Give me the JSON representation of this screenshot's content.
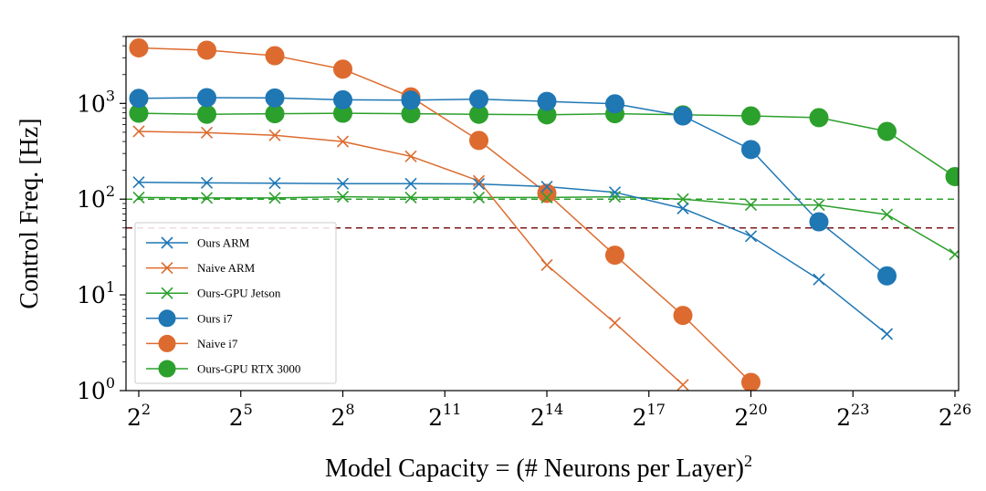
{
  "chart_data": {
    "type": "line",
    "title": "",
    "xlabel": "Model Capacity = (# Neurons per Layer)",
    "xlabel_sup": "2",
    "ylabel": "Control Freq. [Hz]",
    "x_scale": "log2",
    "y_scale": "log10",
    "xlim_exp": [
      2,
      26
    ],
    "ylim": [
      1,
      5000
    ],
    "x_ticks": [
      {
        "base": "2",
        "exp": "2",
        "value": 2
      },
      {
        "base": "2",
        "exp": "5",
        "value": 5
      },
      {
        "base": "2",
        "exp": "8",
        "value": 8
      },
      {
        "base": "2",
        "exp": "11",
        "value": 11
      },
      {
        "base": "2",
        "exp": "14",
        "value": 14
      },
      {
        "base": "2",
        "exp": "17",
        "value": 17
      },
      {
        "base": "2",
        "exp": "20",
        "value": 20
      },
      {
        "base": "2",
        "exp": "23",
        "value": 23
      },
      {
        "base": "2",
        "exp": "26",
        "value": 26
      }
    ],
    "y_ticks": [
      {
        "base": "10",
        "exp": "0",
        "value": 1
      },
      {
        "base": "10",
        "exp": "1",
        "value": 10
      },
      {
        "base": "10",
        "exp": "2",
        "value": 100
      },
      {
        "base": "10",
        "exp": "3",
        "value": 1000
      }
    ],
    "reference_lines": [
      {
        "value": 100,
        "color": "#2ca02c",
        "style": "dashed"
      },
      {
        "value": 50,
        "color": "#7b1818",
        "style": "dashed"
      }
    ],
    "legend_position": "lower-left",
    "series": [
      {
        "name": "Ours ARM",
        "color": "#1f77b4",
        "marker": "x",
        "x_exp": [
          2,
          4,
          6,
          8,
          10,
          12,
          14,
          16,
          18,
          20,
          22,
          24
        ],
        "values": [
          150,
          148,
          147,
          145,
          145,
          144,
          135,
          118,
          80,
          41,
          14.5,
          3.9
        ]
      },
      {
        "name": "Naive ARM",
        "color": "#dd6b2f",
        "marker": "x",
        "x_exp": [
          2,
          4,
          6,
          8,
          10,
          12,
          14,
          16,
          18
        ],
        "values": [
          510,
          495,
          465,
          400,
          280,
          155,
          20.5,
          5.1,
          1.15
        ]
      },
      {
        "name": "Ours-GPU Jetson",
        "color": "#2ca02c",
        "marker": "x",
        "x_exp": [
          2,
          4,
          6,
          8,
          10,
          12,
          14,
          16,
          18,
          20,
          22,
          24,
          26
        ],
        "values": [
          104,
          103,
          103,
          106,
          104,
          104,
          104,
          106,
          100,
          87,
          87,
          69,
          26.5
        ]
      },
      {
        "name": "Ours i7",
        "color": "#1f77b4",
        "marker": "o",
        "x_exp": [
          2,
          4,
          6,
          8,
          10,
          12,
          14,
          16,
          18,
          20,
          22,
          24
        ],
        "values": [
          1130,
          1150,
          1140,
          1090,
          1080,
          1110,
          1050,
          990,
          740,
          330,
          58,
          15.8
        ]
      },
      {
        "name": "Naive i7",
        "color": "#dd6b2f",
        "marker": "o",
        "x_exp": [
          2,
          4,
          6,
          8,
          10,
          12,
          14,
          16,
          18,
          20
        ],
        "values": [
          3800,
          3600,
          3150,
          2280,
          1170,
          410,
          115,
          26,
          6.1,
          1.22
        ]
      },
      {
        "name": "Ours-GPU RTX 3000",
        "color": "#2ca02c",
        "marker": "o",
        "x_exp": [
          2,
          4,
          6,
          8,
          10,
          12,
          14,
          16,
          18,
          20,
          22,
          24,
          26
        ],
        "values": [
          790,
          770,
          780,
          790,
          780,
          770,
          760,
          780,
          760,
          740,
          710,
          510,
          172
        ]
      }
    ]
  }
}
